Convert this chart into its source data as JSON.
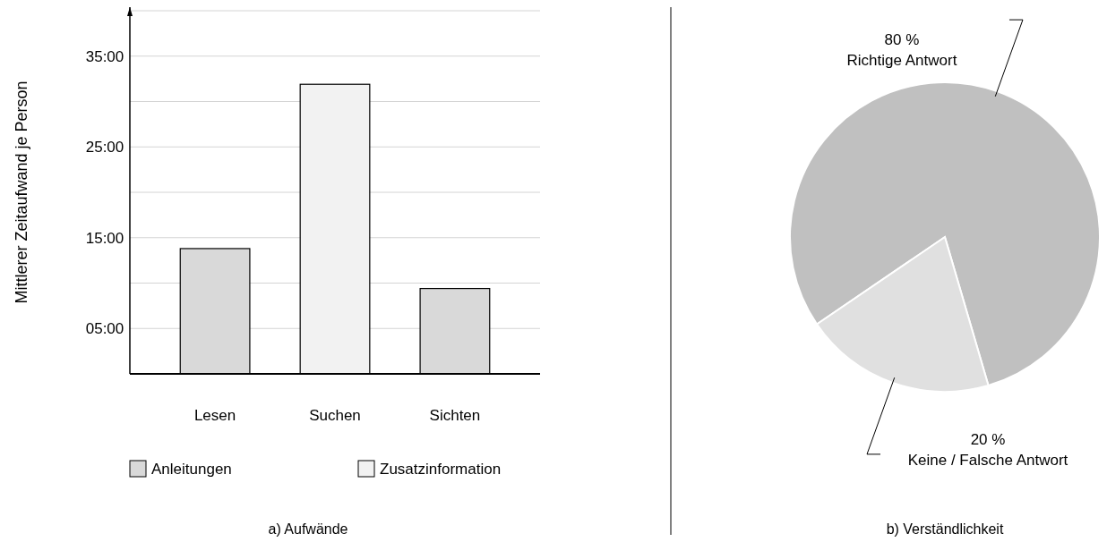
{
  "chart_data": [
    {
      "type": "bar",
      "ylabel": "Mittlerer Zeitaufwand je Person",
      "categories": [
        "Lesen",
        "Suchen",
        "Sichten"
      ],
      "series": [
        {
          "name": "Anleitungen",
          "color": "#d9d9d9",
          "values": [
            13.8,
            null,
            9.4
          ]
        },
        {
          "name": "Zusatzinformation",
          "color": "#f2f2f2",
          "values": [
            null,
            31.9,
            null
          ]
        }
      ],
      "ylim": [
        0,
        40
      ],
      "yticks": [
        {
          "value": 5,
          "label": "05:00"
        },
        {
          "value": 10,
          "label": null
        },
        {
          "value": 15,
          "label": "15:00"
        },
        {
          "value": 20,
          "label": null
        },
        {
          "value": 25,
          "label": "25:00"
        },
        {
          "value": 30,
          "label": null
        },
        {
          "value": 35,
          "label": "35:00"
        },
        {
          "value": 40,
          "label": null
        }
      ],
      "grid": "y",
      "legend": "bottom",
      "annotations": [
        "a) Aufwände"
      ]
    },
    {
      "type": "pie",
      "categories": [
        "Richtige Antwort",
        "Keine / Falsche Antwort"
      ],
      "values": [
        80,
        20
      ],
      "colors": [
        "#c0c0c0",
        "#e0e0e0"
      ],
      "value_labels": [
        "80 %",
        "20 %"
      ],
      "annotations": [
        "b) Verständlichkeit"
      ]
    }
  ]
}
